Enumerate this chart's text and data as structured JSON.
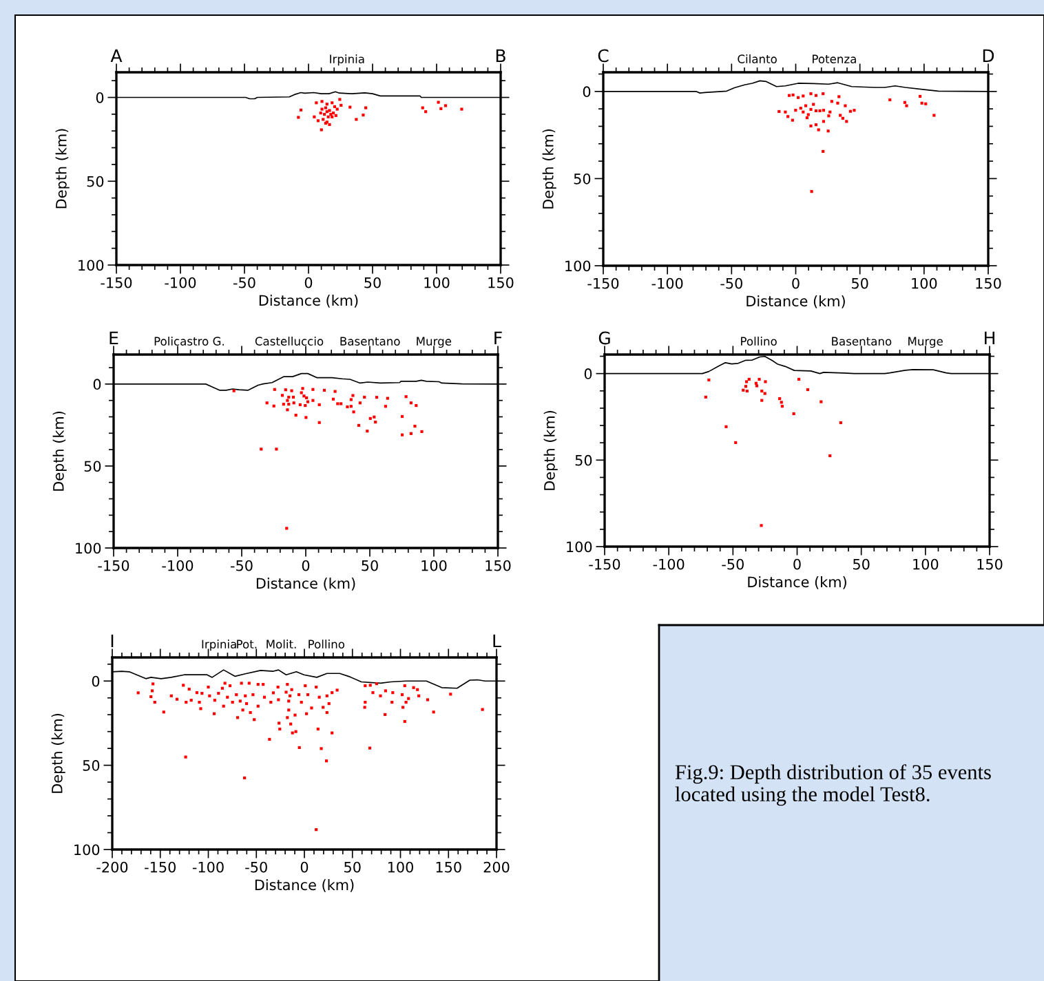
{
  "chart_data": [
    {
      "type": "scatter",
      "xlabel": "Distance (km)",
      "ylabel": "Depth (km)",
      "xlim": [
        -150,
        150
      ],
      "ylim": [
        100,
        -15
      ],
      "xticks": [
        -150,
        {
          "value": -140,
          "label": null
        },
        {
          "value": -130,
          "label": null
        },
        {
          "value": -120,
          "label": null
        },
        {
          "value": -110,
          "label": null
        },
        -100,
        {
          "value": -90,
          "label": null
        },
        {
          "value": -80,
          "label": null
        },
        {
          "value": -70,
          "label": null
        },
        {
          "value": -60,
          "label": null
        },
        -50,
        {
          "value": -40,
          "label": null
        },
        {
          "value": -30,
          "label": null
        },
        {
          "value": -20,
          "label": null
        },
        {
          "value": -10,
          "label": null
        },
        0,
        {
          "value": 10,
          "label": null
        },
        {
          "value": 20,
          "label": null
        },
        {
          "value": 30,
          "label": null
        },
        {
          "value": 40,
          "label": null
        },
        50,
        {
          "value": 60,
          "label": null
        },
        {
          "value": 70,
          "label": null
        },
        {
          "value": 80,
          "label": null
        },
        {
          "value": 90,
          "label": null
        },
        100,
        {
          "value": 110,
          "label": null
        },
        {
          "value": 120,
          "label": null
        },
        {
          "value": 130,
          "label": null
        },
        {
          "value": 140,
          "label": null
        },
        150
      ],
      "yticks": [
        {
          "value": -10,
          "label": null
        },
        0,
        {
          "value": 10,
          "label": null
        },
        {
          "value": 20,
          "label": null
        },
        {
          "value": 30,
          "label": null
        },
        {
          "value": 40,
          "label": null
        },
        50,
        {
          "value": 60,
          "label": null
        },
        {
          "value": 70,
          "label": null
        },
        {
          "value": 80,
          "label": null
        },
        {
          "value": 90,
          "label": null
        },
        100
      ],
      "annotations": [
        "A",
        "Irpinia",
        "B"
      ],
      "series": [
        {
          "type": "line",
          "color": "#000000",
          "x": [
            -150,
            -49,
            -46,
            -42,
            -40,
            -15,
            -11,
            -6,
            -3,
            4,
            10,
            16,
            21,
            24,
            34,
            44,
            50,
            56,
            87,
            88,
            150
          ],
          "values": [
            0,
            0,
            0.8,
            0.8,
            0,
            -0.3,
            -1.7,
            -2.9,
            -2.5,
            -2.9,
            -2.2,
            -2.2,
            -3.4,
            -2.6,
            -2.2,
            -2.7,
            -2.2,
            -0.9,
            -0.9,
            0,
            0
          ]
        },
        {
          "type": "scatter",
          "color": "#ff0000",
          "marker": "square",
          "x": [
            -5.9,
            -7.9,
            6.1,
            10.5,
            14.4,
            18.4,
            24.4,
            25.4,
            32.4,
            44.7,
            42.7,
            37.3,
            10.1,
            4.5,
            7.5,
            10.5,
            13.4,
            16.4,
            19.4,
            22.4,
            12.4,
            15.4,
            18.4,
            11.4,
            14.4,
            16.4,
            13.4,
            20.4,
            9.5,
            17.4,
            21.4,
            14.4,
            89.1,
            91.5,
            101.4,
            103.4,
            107.0,
            119.6
          ],
          "values": [
            7.5,
            11.9,
            3.2,
            2.4,
            4.0,
            3.2,
            1.2,
            4.7,
            5.8,
            6.2,
            10.5,
            13.1,
            19.3,
            11.6,
            13.9,
            7.0,
            6.2,
            7.8,
            9.3,
            7.0,
            10.1,
            11.6,
            11.6,
            13.1,
            14.7,
            16.2,
            15.4,
            5.5,
            9.3,
            10.1,
            10.8,
            8.5,
            6.2,
            8.5,
            2.9,
            6.7,
            4.9,
            7.0
          ]
        }
      ]
    },
    {
      "type": "scatter",
      "xlabel": "Distance (km)",
      "ylabel": "Depth (km)",
      "xlim": [
        -150,
        150
      ],
      "ylim": [
        100,
        -11
      ],
      "xticks": [
        -150,
        {
          "value": -140,
          "label": null
        },
        {
          "value": -130,
          "label": null
        },
        {
          "value": -120,
          "label": null
        },
        {
          "value": -110,
          "label": null
        },
        -100,
        {
          "value": -90,
          "label": null
        },
        {
          "value": -80,
          "label": null
        },
        {
          "value": -70,
          "label": null
        },
        {
          "value": -60,
          "label": null
        },
        -50,
        {
          "value": -40,
          "label": null
        },
        {
          "value": -30,
          "label": null
        },
        {
          "value": -20,
          "label": null
        },
        {
          "value": -10,
          "label": null
        },
        0,
        {
          "value": 10,
          "label": null
        },
        {
          "value": 20,
          "label": null
        },
        {
          "value": 30,
          "label": null
        },
        {
          "value": 40,
          "label": null
        },
        50,
        {
          "value": 60,
          "label": null
        },
        {
          "value": 70,
          "label": null
        },
        {
          "value": 80,
          "label": null
        },
        {
          "value": 90,
          "label": null
        },
        100,
        {
          "value": 110,
          "label": null
        },
        {
          "value": 120,
          "label": null
        },
        {
          "value": 130,
          "label": null
        },
        {
          "value": 140,
          "label": null
        },
        150
      ],
      "yticks": [
        {
          "value": -10,
          "label": null
        },
        0,
        {
          "value": 10,
          "label": null
        },
        {
          "value": 20,
          "label": null
        },
        {
          "value": 30,
          "label": null
        },
        {
          "value": 40,
          "label": null
        },
        50,
        {
          "value": 60,
          "label": null
        },
        {
          "value": 70,
          "label": null
        },
        {
          "value": 80,
          "label": null
        },
        {
          "value": 90,
          "label": null
        },
        100
      ],
      "annotations": [
        "C",
        "Cilanto",
        "Potenza",
        "D"
      ],
      "series": [
        {
          "type": "line",
          "color": "#000000",
          "x": [
            -150,
            -77.7,
            -74.7,
            -70.7,
            -53.8,
            -47.8,
            -39.9,
            -33.9,
            -27.9,
            -23.0,
            -15.0,
            -8.1,
            1.9,
            13.8,
            25.7,
            32.7,
            43.6,
            61.5,
            69.5,
            77.4,
            85.4,
            101.3,
            111.2,
            150
          ],
          "values": [
            0,
            0,
            0.9,
            0.6,
            -0.2,
            -2.1,
            -3.8,
            -4.7,
            -6.1,
            -5.7,
            -2.8,
            -3.2,
            -4.7,
            -4.5,
            -4.2,
            -5.0,
            -2.8,
            -2.3,
            -2.3,
            -3.2,
            -2.3,
            -1.0,
            -0.2,
            0
          ]
        },
        {
          "type": "scatter",
          "color": "#ff0000",
          "marker": "square",
          "x": [
            -5.1,
            -2.1,
            1.9,
            5.8,
            11.8,
            15.8,
            21.3,
            33.7,
            28.1,
            32.7,
            38.6,
            42.6,
            45.6,
            -13.0,
            -8.1,
            -6.1,
            -2.5,
            -0.1,
            3.9,
            5.8,
            7.8,
            9.8,
            11.8,
            13.8,
            15.8,
            18.8,
            21.7,
            25.7,
            26.7,
            8.8,
            11.8,
            15.8,
            17.8,
            21.7,
            25.3,
            34.7,
            36.7,
            39.6,
            21.3,
            12.4,
            73.4,
            85.0,
            86.4,
            96.9,
            98.3,
            101.3,
            107.8
          ],
          "values": [
            2.3,
            2.0,
            3.5,
            2.6,
            1.3,
            2.3,
            1.3,
            3.0,
            5.7,
            6.7,
            8.2,
            11.4,
            10.8,
            11.5,
            11.8,
            14.4,
            16.5,
            10.8,
            9.6,
            11.8,
            8.2,
            13.3,
            10.3,
            7.4,
            11.1,
            11.1,
            10.8,
            14.0,
            11.8,
            15.1,
            19.8,
            19.1,
            22.0,
            17.2,
            22.7,
            13.7,
            15.4,
            17.2,
            34.4,
            57.4,
            4.8,
            6.3,
            8.2,
            2.8,
            6.7,
            7.1,
            13.7
          ]
        }
      ]
    },
    {
      "type": "scatter",
      "xlabel": "Distance (km)",
      "ylabel": "Depth (km)",
      "xlim": [
        -150,
        150
      ],
      "ylim": [
        100,
        -18
      ],
      "xticks": [
        -150,
        {
          "value": -140,
          "label": null
        },
        {
          "value": -130,
          "label": null
        },
        {
          "value": -120,
          "label": null
        },
        {
          "value": -110,
          "label": null
        },
        -100,
        {
          "value": -90,
          "label": null
        },
        {
          "value": -80,
          "label": null
        },
        {
          "value": -70,
          "label": null
        },
        {
          "value": -60,
          "label": null
        },
        -50,
        {
          "value": -40,
          "label": null
        },
        {
          "value": -30,
          "label": null
        },
        {
          "value": -20,
          "label": null
        },
        {
          "value": -10,
          "label": null
        },
        0,
        {
          "value": 10,
          "label": null
        },
        {
          "value": 20,
          "label": null
        },
        {
          "value": 30,
          "label": null
        },
        {
          "value": 40,
          "label": null
        },
        50,
        {
          "value": 60,
          "label": null
        },
        {
          "value": 70,
          "label": null
        },
        {
          "value": 80,
          "label": null
        },
        {
          "value": 90,
          "label": null
        },
        100,
        {
          "value": 110,
          "label": null
        },
        {
          "value": 120,
          "label": null
        },
        {
          "value": 130,
          "label": null
        },
        {
          "value": 140,
          "label": null
        },
        150
      ],
      "yticks": [
        {
          "value": -10,
          "label": null
        },
        0,
        {
          "value": 10,
          "label": null
        },
        {
          "value": 20,
          "label": null
        },
        {
          "value": 30,
          "label": null
        },
        {
          "value": 40,
          "label": null
        },
        50,
        {
          "value": 60,
          "label": null
        },
        {
          "value": 70,
          "label": null
        },
        {
          "value": 80,
          "label": null
        },
        {
          "value": 90,
          "label": null
        },
        100
      ],
      "annotations": [
        "E",
        "Policastro G.",
        "Castelluccio",
        "Basentano",
        "Murge",
        "F"
      ],
      "series": [
        {
          "type": "line",
          "color": "#000000",
          "x": [
            -150,
            -78.0,
            -73.1,
            -67.1,
            -62.1,
            -57.1,
            -52.2,
            -45.2,
            -37.2,
            -33.2,
            -26.3,
            -17.3,
            -10.3,
            -3.4,
            1.6,
            8.6,
            20.5,
            28.5,
            34.5,
            42.4,
            48.4,
            58.3,
            73.3,
            74.3,
            86.2,
            90.2,
            94.2,
            104.1,
            106.1,
            122.1,
            150
          ],
          "values": [
            0,
            0,
            1.7,
            3.8,
            3.8,
            3.0,
            3.5,
            3.8,
            0.7,
            -0.1,
            -0.9,
            -4.5,
            -4.5,
            -6.4,
            -6.4,
            -3.9,
            -3.9,
            -3.2,
            -2.9,
            -0.6,
            -1.2,
            -0.6,
            -0.9,
            -1.7,
            -1.7,
            -2.3,
            -1.7,
            -1.4,
            -0.6,
            -0.1,
            0
          ]
        },
        {
          "type": "scatter",
          "color": "#ff0000",
          "marker": "square",
          "x": [
            -56.1,
            -24.3,
            -15.7,
            -11.0,
            -2.4,
            5.6,
            14.5,
            22.9,
            -18.3,
            -13.3,
            -9.7,
            -3.4,
            -1.4,
            0.6,
            5.6,
            -30.3,
            -24.9,
            -17.3,
            -14.3,
            -13.3,
            -9.3,
            -4.4,
            -0.4,
            1.6,
            -14.3,
            -7.7,
            0.2,
            10.6,
            10.6,
            21.5,
            24.9,
            27.5,
            35.4,
            36.8,
            32.5,
            35.4,
            37.4,
            42.4,
            45.8,
            55.4,
            63.9,
            62.3,
            50.4,
            53.4,
            54.4,
            41.4,
            48.0,
            75.3,
            78.3,
            82.2,
            86.2,
            85.2,
            90.6,
            82.2,
            75.3,
            -34.8,
            -22.9,
            -14.9
          ],
          "values": [
            4.1,
            3.3,
            3.5,
            4.1,
            2.7,
            3.3,
            3.8,
            4.5,
            6.9,
            8.0,
            8.0,
            5.3,
            7.3,
            8.4,
            10.0,
            11.5,
            13.4,
            12.3,
            10.0,
            12.3,
            11.5,
            12.6,
            13.1,
            10.8,
            15.7,
            19.0,
            20.4,
            12.6,
            23.5,
            9.2,
            12.0,
            12.0,
            9.5,
            7.0,
            13.9,
            13.6,
            17.0,
            11.5,
            8.0,
            8.1,
            8.7,
            13.6,
            21.0,
            20.1,
            23.2,
            25.2,
            28.7,
            19.8,
            7.7,
            11.5,
            13.1,
            25.7,
            29.0,
            30.2,
            31.0,
            39.7,
            39.7,
            88.0
          ]
        }
      ]
    },
    {
      "type": "scatter",
      "xlabel": "Distance (km)",
      "ylabel": "Depth (km)",
      "xlim": [
        -150,
        150
      ],
      "ylim": [
        100,
        -11
      ],
      "xticks": [
        -150,
        {
          "value": -140,
          "label": null
        },
        {
          "value": -130,
          "label": null
        },
        {
          "value": -120,
          "label": null
        },
        {
          "value": -110,
          "label": null
        },
        -100,
        {
          "value": -90,
          "label": null
        },
        {
          "value": -80,
          "label": null
        },
        {
          "value": -70,
          "label": null
        },
        {
          "value": -60,
          "label": null
        },
        -50,
        {
          "value": -40,
          "label": null
        },
        {
          "value": -30,
          "label": null
        },
        {
          "value": -20,
          "label": null
        },
        {
          "value": -10,
          "label": null
        },
        0,
        {
          "value": 10,
          "label": null
        },
        {
          "value": 20,
          "label": null
        },
        {
          "value": 30,
          "label": null
        },
        {
          "value": 40,
          "label": null
        },
        50,
        {
          "value": 60,
          "label": null
        },
        {
          "value": 70,
          "label": null
        },
        {
          "value": 80,
          "label": null
        },
        {
          "value": 90,
          "label": null
        },
        100,
        {
          "value": 110,
          "label": null
        },
        {
          "value": 120,
          "label": null
        },
        {
          "value": 130,
          "label": null
        },
        {
          "value": 140,
          "label": null
        },
        150
      ],
      "yticks": [
        {
          "value": -10,
          "label": null
        },
        0,
        {
          "value": 10,
          "label": null
        },
        {
          "value": 20,
          "label": null
        },
        {
          "value": 30,
          "label": null
        },
        {
          "value": 40,
          "label": null
        },
        50,
        {
          "value": 60,
          "label": null
        },
        {
          "value": 70,
          "label": null
        },
        {
          "value": 80,
          "label": null
        },
        {
          "value": 90,
          "label": null
        },
        100
      ],
      "annotations": [
        "G",
        "Pollino",
        "Basentano",
        "Murge",
        "H"
      ],
      "series": [
        {
          "type": "line",
          "color": "#000000",
          "x": [
            -150,
            -73.8,
            -68.8,
            -60.9,
            -55.9,
            -51.0,
            -46.0,
            -40.0,
            -35.0,
            -29.1,
            -25.1,
            -19.1,
            -15.1,
            -9.2,
            -2.2,
            10.7,
            17.7,
            20.6,
            36.5,
            44.5,
            56.4,
            68.4,
            72.3,
            84.3,
            90.2,
            106.1,
            116.1,
            120.0,
            150
          ],
          "values": [
            0,
            0,
            -1.2,
            -4.4,
            -6.3,
            -5.6,
            -5.9,
            -7.7,
            -7.8,
            -9.6,
            -9.9,
            -7.4,
            -5.4,
            -4.1,
            -1.8,
            -1.5,
            0,
            -0.7,
            -0.3,
            0,
            0,
            0,
            -0.4,
            -1.9,
            -2.3,
            -2.2,
            -0.4,
            0,
            0
          ]
        },
        {
          "type": "scatter",
          "color": "#ff0000",
          "marker": "square",
          "x": [
            -68.8,
            -71.2,
            -37.4,
            -39.4,
            -40.0,
            -42.0,
            -39.0,
            -32.0,
            -31.4,
            -29.5,
            -24.7,
            -27.5,
            -25.1,
            -27.5,
            -13.6,
            -12.2,
            -11.6,
            -2.6,
            1.4,
            8.3,
            18.7,
            34.0,
            25.6,
            -55.3,
            -47.9,
            -27.9
          ],
          "values": [
            3.7,
            13.6,
            3.3,
            4.7,
            7.4,
            9.6,
            10.1,
            5.6,
            7.1,
            3.3,
            4.7,
            10.1,
            11.5,
            15.5,
            14.5,
            16.6,
            18.9,
            23.2,
            3.3,
            9.3,
            16.3,
            28.4,
            47.5,
            30.7,
            39.9,
            87.8
          ]
        }
      ]
    },
    {
      "type": "scatter",
      "xlabel": "Distance (km)",
      "ylabel": "Depth (km)",
      "xlim": [
        -200,
        200
      ],
      "ylim": [
        100,
        -14
      ],
      "xticks": [
        -200,
        {
          "value": -190,
          "label": null
        },
        {
          "value": -180,
          "label": null
        },
        {
          "value": -170,
          "label": null
        },
        {
          "value": -160,
          "label": null
        },
        -150,
        {
          "value": -140,
          "label": null
        },
        {
          "value": -130,
          "label": null
        },
        {
          "value": -120,
          "label": null
        },
        {
          "value": -110,
          "label": null
        },
        -100,
        {
          "value": -90,
          "label": null
        },
        {
          "value": -80,
          "label": null
        },
        {
          "value": -70,
          "label": null
        },
        {
          "value": -60,
          "label": null
        },
        -50,
        {
          "value": -40,
          "label": null
        },
        {
          "value": -30,
          "label": null
        },
        {
          "value": -20,
          "label": null
        },
        {
          "value": -10,
          "label": null
        },
        0,
        {
          "value": 10,
          "label": null
        },
        {
          "value": 20,
          "label": null
        },
        {
          "value": 30,
          "label": null
        },
        {
          "value": 40,
          "label": null
        },
        50,
        {
          "value": 60,
          "label": null
        },
        {
          "value": 70,
          "label": null
        },
        {
          "value": 80,
          "label": null
        },
        {
          "value": 90,
          "label": null
        },
        100,
        {
          "value": 110,
          "label": null
        },
        {
          "value": 120,
          "label": null
        },
        {
          "value": 130,
          "label": null
        },
        {
          "value": 140,
          "label": null
        },
        150,
        {
          "value": 160,
          "label": null
        },
        {
          "value": 170,
          "label": null
        },
        {
          "value": 180,
          "label": null
        },
        {
          "value": 190,
          "label": null
        },
        200
      ],
      "yticks": [
        {
          "value": -10,
          "label": null
        },
        0,
        {
          "value": 10,
          "label": null
        },
        {
          "value": 20,
          "label": null
        },
        {
          "value": 30,
          "label": null
        },
        {
          "value": 40,
          "label": null
        },
        50,
        {
          "value": 60,
          "label": null
        },
        {
          "value": 70,
          "label": null
        },
        {
          "value": 80,
          "label": null
        },
        {
          "value": 90,
          "label": null
        },
        100
      ],
      "annotations": [
        "I",
        "Irpinia",
        "Pot.",
        "Molit.",
        "Pollino",
        "L"
      ],
      "series": [
        {
          "type": "line",
          "color": "#000000",
          "x": [
            -200,
            -190.3,
            -182.3,
            -165.0,
            -159.7,
            -149.1,
            -138.5,
            -125.2,
            -101.3,
            -96.0,
            -84.1,
            -72.1,
            -61.5,
            -45.6,
            -32.3,
            -27.0,
            -19.0,
            -8.4,
            -0.4,
            12.9,
            23.5,
            36.8,
            47.4,
            59.3,
            79.2,
            89.9,
            105.8,
            127.0,
            143.0,
            158.9,
            172.2,
            180.1,
            188.1,
            200
          ],
          "values": [
            -5.5,
            -5.8,
            -5.5,
            -1.4,
            -2.2,
            -1.4,
            -2.2,
            -3.7,
            -3.7,
            -2.2,
            -6.6,
            -2.8,
            -4.3,
            -6.3,
            -5.8,
            -6.6,
            -3.7,
            -5.5,
            -3.7,
            -2.2,
            -4.5,
            -4.5,
            -2.5,
            0.5,
            1.3,
            0.5,
            0,
            0,
            3.9,
            4.3,
            -0.5,
            -0.7,
            0,
            0
          ]
        },
        {
          "type": "scatter",
          "color": "#ff0000",
          "marker": "square",
          "x": [
            -173.0,
            -157.6,
            -158.4,
            -159.7,
            -155.7,
            -146.4,
            -138.5,
            -132.6,
            -126.0,
            -123.1,
            -119.9,
            -117.8,
            -111.9,
            -107.9,
            -106.6,
            -109.3,
            -100.0,
            -98.7,
            -93.9,
            -93.3,
            -89.4,
            -85.4,
            -82.7,
            -84.1,
            -80.1,
            -77.4,
            -74.8,
            -70.8,
            -69.5,
            -65.5,
            -66.8,
            -64.1,
            -61.5,
            -60.2,
            -57.5,
            -56.2,
            -53.5,
            -52.2,
            -48.2,
            -48.2,
            -42.9,
            -41.6,
            -34.9,
            -36.3,
            -32.3,
            -27.5,
            -27.0,
            -26.4,
            -25.6,
            -19.0,
            -17.7,
            -16.3,
            -15.0,
            -13.2,
            -16.3,
            -17.7,
            -14.2,
            -9.7,
            -12.4,
            -8.9,
            -5.7,
            -5.2,
            -3.1,
            0.9,
            2.2,
            3.6,
            7.5,
            12.3,
            14.2,
            15.5,
            17.6,
            19.5,
            23.5,
            23.5,
            23.0,
            25.6,
            28.8,
            28.8,
            34.1,
            12.3,
            -123.6,
            -62.3,
            63.3,
            68.6,
            75.2,
            63.3,
            62.8,
            71.3,
            79.2,
            84.5,
            84.0,
            91.2,
            92.0,
            68.1,
            101.8,
            104.5,
            102.6,
            105.8,
            108.4,
            104.5,
            113.7,
            119.1,
            117.7,
            128.3,
            134.5,
            152.2,
            185.4
          ],
          "values": [
            7.0,
            1.7,
            5.8,
            9.3,
            12.6,
            18.4,
            8.8,
            10.8,
            2.5,
            12.6,
            4.8,
            11.4,
            6.9,
            16.4,
            7.3,
            12.6,
            3.6,
            8.8,
            19.4,
            11.4,
            7.3,
            4.3,
            1.3,
            14.9,
            9.6,
            2.8,
            12.6,
            8.1,
            21.7,
            1.3,
            11.9,
            17.2,
            8.8,
            13.4,
            1.3,
            18.7,
            8.1,
            22.9,
            2.0,
            14.9,
            2.0,
            9.6,
            12.6,
            34.6,
            7.0,
            3.6,
            11.1,
            25.0,
            28.5,
            6.6,
            2.0,
            11.9,
            8.8,
            5.1,
            17.2,
            21.7,
            25.5,
            20.2,
            30.8,
            30.0,
            8.1,
            39.5,
            12.6,
            2.8,
            19.4,
            8.1,
            16.0,
            3.6,
            28.5,
            9.6,
            40.1,
            15.6,
            8.8,
            18.7,
            47.4,
            13.4,
            30.8,
            6.9,
            5.4,
            88.2,
            45.1,
            57.5,
            2.8,
            2.5,
            1.6,
            12.6,
            15.6,
            6.9,
            8.8,
            5.8,
            19.9,
            12.6,
            6.9,
            39.8,
            8.1,
            2.8,
            15.6,
            12.6,
            10.4,
            24.0,
            3.9,
            8.8,
            5.1,
            11.1,
            18.4,
            7.8,
            16.9
          ]
        }
      ]
    },
    {
      "type": "other",
      "annotations": [
        "Fig.9: Depth distribution of 35 events located using the model Test8."
      ]
    }
  ]
}
